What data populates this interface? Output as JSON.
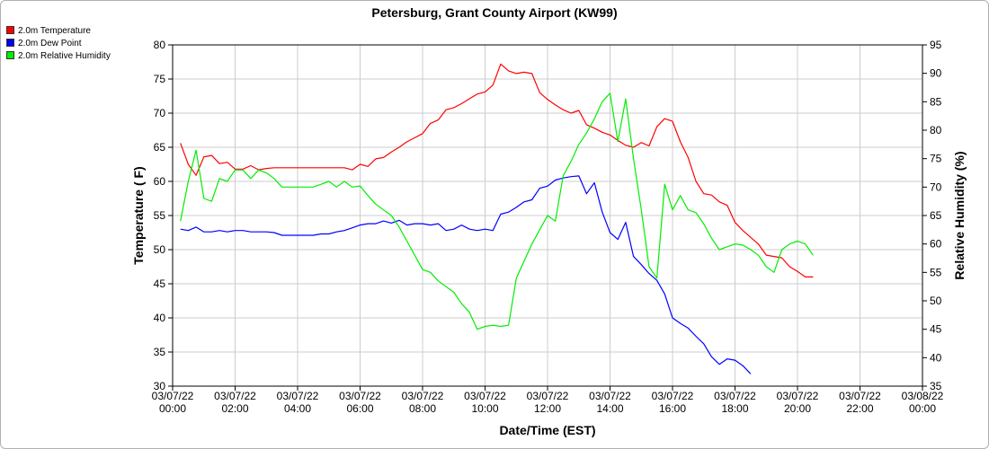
{
  "chart_data": {
    "type": "line",
    "title": "Petersburg, Grant County Airport (KW99)",
    "xlabel": "Date/Time (EST)",
    "ylabel_left": "Temperature ( F)",
    "ylabel_right": "Relative Humidity (%)",
    "grid": true,
    "legend_placement": "top-left",
    "x_ticks": [
      {
        "date": "03/07/22",
        "time": "00:00",
        "hours": 0
      },
      {
        "date": "03/07/22",
        "time": "02:00",
        "hours": 2
      },
      {
        "date": "03/07/22",
        "time": "04:00",
        "hours": 4
      },
      {
        "date": "03/07/22",
        "time": "06:00",
        "hours": 6
      },
      {
        "date": "03/07/22",
        "time": "08:00",
        "hours": 8
      },
      {
        "date": "03/07/22",
        "time": "10:00",
        "hours": 10
      },
      {
        "date": "03/07/22",
        "time": "12:00",
        "hours": 12
      },
      {
        "date": "03/07/22",
        "time": "14:00",
        "hours": 14
      },
      {
        "date": "03/07/22",
        "time": "16:00",
        "hours": 16
      },
      {
        "date": "03/07/22",
        "time": "18:00",
        "hours": 18
      },
      {
        "date": "03/07/22",
        "time": "20:00",
        "hours": 20
      },
      {
        "date": "03/07/22",
        "time": "22:00",
        "hours": 22
      },
      {
        "date": "03/08/22",
        "time": "00:00",
        "hours": 24
      }
    ],
    "xlim_hours": [
      0,
      24
    ],
    "ylim_left": [
      30,
      80
    ],
    "yticks_left": [
      30,
      35,
      40,
      45,
      50,
      55,
      60,
      65,
      70,
      75,
      80
    ],
    "ylim_right": [
      35,
      95
    ],
    "yticks_right": [
      35,
      40,
      45,
      50,
      55,
      60,
      65,
      70,
      75,
      80,
      85,
      90,
      95
    ],
    "series": [
      {
        "name": "2.0m Temperature",
        "color": "#ff0000",
        "axis": "left",
        "points": [
          [
            0.25,
            65.6
          ],
          [
            0.5,
            62.5
          ],
          [
            0.75,
            60.9
          ],
          [
            1.0,
            63.6
          ],
          [
            1.25,
            63.8
          ],
          [
            1.5,
            62.6
          ],
          [
            1.75,
            62.8
          ],
          [
            2.0,
            61.8
          ],
          [
            2.25,
            61.8
          ],
          [
            2.5,
            62.3
          ],
          [
            2.75,
            61.7
          ],
          [
            3.0,
            61.9
          ],
          [
            3.25,
            62.0
          ],
          [
            3.5,
            62.0
          ],
          [
            4.0,
            62.0
          ],
          [
            4.5,
            62.0
          ],
          [
            5.0,
            62.0
          ],
          [
            5.5,
            62.0
          ],
          [
            5.75,
            61.7
          ],
          [
            6.0,
            62.5
          ],
          [
            6.25,
            62.2
          ],
          [
            6.5,
            63.3
          ],
          [
            6.75,
            63.5
          ],
          [
            7.0,
            64.3
          ],
          [
            7.25,
            65.0
          ],
          [
            7.5,
            65.8
          ],
          [
            7.75,
            66.4
          ],
          [
            8.0,
            67.0
          ],
          [
            8.25,
            68.5
          ],
          [
            8.5,
            69.0
          ],
          [
            8.75,
            70.5
          ],
          [
            9.0,
            70.8
          ],
          [
            9.25,
            71.4
          ],
          [
            9.5,
            72.1
          ],
          [
            9.75,
            72.8
          ],
          [
            10.0,
            73.1
          ],
          [
            10.25,
            74.1
          ],
          [
            10.5,
            77.2
          ],
          [
            10.75,
            76.2
          ],
          [
            11.0,
            75.8
          ],
          [
            11.25,
            76.0
          ],
          [
            11.5,
            75.8
          ],
          [
            11.75,
            73.0
          ],
          [
            12.0,
            72.0
          ],
          [
            12.25,
            71.2
          ],
          [
            12.5,
            70.5
          ],
          [
            12.75,
            70.0
          ],
          [
            13.0,
            70.4
          ],
          [
            13.25,
            68.3
          ],
          [
            13.5,
            67.8
          ],
          [
            13.75,
            67.2
          ],
          [
            14.0,
            66.8
          ],
          [
            14.25,
            66.0
          ],
          [
            14.5,
            65.3
          ],
          [
            14.75,
            65.0
          ],
          [
            15.0,
            65.7
          ],
          [
            15.25,
            65.2
          ],
          [
            15.5,
            68.0
          ],
          [
            15.75,
            69.2
          ],
          [
            16.0,
            68.8
          ],
          [
            16.25,
            65.8
          ],
          [
            16.5,
            63.5
          ],
          [
            16.75,
            60.0
          ],
          [
            17.0,
            58.2
          ],
          [
            17.25,
            58.0
          ],
          [
            17.5,
            57.0
          ],
          [
            17.75,
            56.5
          ],
          [
            18.0,
            54.0
          ],
          [
            18.25,
            52.8
          ],
          [
            18.5,
            51.8
          ],
          [
            18.75,
            50.8
          ],
          [
            19.0,
            49.2
          ],
          [
            19.25,
            49.0
          ],
          [
            19.5,
            48.8
          ],
          [
            19.75,
            47.5
          ],
          [
            20.0,
            46.8
          ],
          [
            20.25,
            46.0
          ],
          [
            20.5,
            46.0
          ]
        ]
      },
      {
        "name": "2.0m Dew Point",
        "color": "#0000ff",
        "axis": "left",
        "points": [
          [
            0.25,
            53.0
          ],
          [
            0.5,
            52.8
          ],
          [
            0.75,
            53.3
          ],
          [
            1.0,
            52.6
          ],
          [
            1.25,
            52.6
          ],
          [
            1.5,
            52.8
          ],
          [
            1.75,
            52.6
          ],
          [
            2.0,
            52.8
          ],
          [
            2.25,
            52.8
          ],
          [
            2.5,
            52.6
          ],
          [
            3.0,
            52.6
          ],
          [
            3.25,
            52.5
          ],
          [
            3.5,
            52.1
          ],
          [
            4.0,
            52.1
          ],
          [
            4.5,
            52.1
          ],
          [
            4.75,
            52.3
          ],
          [
            5.0,
            52.3
          ],
          [
            5.25,
            52.6
          ],
          [
            5.5,
            52.8
          ],
          [
            5.75,
            53.2
          ],
          [
            6.0,
            53.6
          ],
          [
            6.25,
            53.8
          ],
          [
            6.5,
            53.8
          ],
          [
            6.75,
            54.2
          ],
          [
            7.0,
            53.9
          ],
          [
            7.25,
            54.3
          ],
          [
            7.5,
            53.6
          ],
          [
            7.75,
            53.8
          ],
          [
            8.0,
            53.8
          ],
          [
            8.25,
            53.6
          ],
          [
            8.5,
            53.8
          ],
          [
            8.75,
            52.8
          ],
          [
            9.0,
            53.0
          ],
          [
            9.25,
            53.6
          ],
          [
            9.5,
            53.0
          ],
          [
            9.75,
            52.8
          ],
          [
            10.0,
            53.0
          ],
          [
            10.25,
            52.8
          ],
          [
            10.5,
            55.2
          ],
          [
            10.75,
            55.5
          ],
          [
            11.0,
            56.2
          ],
          [
            11.25,
            57.0
          ],
          [
            11.5,
            57.3
          ],
          [
            11.75,
            59.0
          ],
          [
            12.0,
            59.3
          ],
          [
            12.25,
            60.2
          ],
          [
            12.5,
            60.5
          ],
          [
            12.75,
            60.7
          ],
          [
            13.0,
            60.8
          ],
          [
            13.25,
            58.2
          ],
          [
            13.5,
            59.8
          ],
          [
            13.75,
            55.5
          ],
          [
            14.0,
            52.5
          ],
          [
            14.25,
            51.5
          ],
          [
            14.5,
            54.0
          ],
          [
            14.75,
            49.0
          ],
          [
            15.0,
            47.8
          ],
          [
            15.25,
            46.5
          ],
          [
            15.5,
            45.5
          ],
          [
            15.75,
            43.5
          ],
          [
            16.0,
            40.0
          ],
          [
            16.25,
            39.2
          ],
          [
            16.5,
            38.5
          ],
          [
            16.75,
            37.3
          ],
          [
            17.0,
            36.2
          ],
          [
            17.25,
            34.3
          ],
          [
            17.5,
            33.2
          ],
          [
            17.75,
            34.0
          ],
          [
            18.0,
            33.8
          ],
          [
            18.25,
            33.0
          ],
          [
            18.5,
            31.8
          ]
        ]
      },
      {
        "name": "2.0m Relative Humidity",
        "color": "#00ee00",
        "axis": "right",
        "points": [
          [
            0.25,
            64.0
          ],
          [
            0.5,
            71.0
          ],
          [
            0.75,
            76.5
          ],
          [
            1.0,
            68.0
          ],
          [
            1.25,
            67.5
          ],
          [
            1.5,
            71.5
          ],
          [
            1.75,
            71.0
          ],
          [
            2.0,
            73.0
          ],
          [
            2.25,
            73.0
          ],
          [
            2.5,
            71.5
          ],
          [
            2.75,
            73.0
          ],
          [
            3.0,
            72.5
          ],
          [
            3.25,
            71.5
          ],
          [
            3.5,
            70.0
          ],
          [
            4.0,
            70.0
          ],
          [
            4.5,
            70.0
          ],
          [
            4.75,
            70.5
          ],
          [
            5.0,
            71.0
          ],
          [
            5.25,
            70.0
          ],
          [
            5.5,
            71.0
          ],
          [
            5.75,
            70.0
          ],
          [
            6.0,
            70.2
          ],
          [
            6.25,
            68.5
          ],
          [
            6.5,
            67.0
          ],
          [
            6.75,
            66.0
          ],
          [
            7.0,
            65.0
          ],
          [
            7.25,
            63.0
          ],
          [
            7.5,
            60.5
          ],
          [
            7.75,
            58.0
          ],
          [
            8.0,
            55.5
          ],
          [
            8.25,
            55.0
          ],
          [
            8.5,
            53.5
          ],
          [
            8.75,
            52.5
          ],
          [
            9.0,
            51.5
          ],
          [
            9.25,
            49.5
          ],
          [
            9.5,
            48.0
          ],
          [
            9.75,
            45.0
          ],
          [
            10.0,
            45.5
          ],
          [
            10.25,
            45.7
          ],
          [
            10.5,
            45.5
          ],
          [
            10.75,
            45.7
          ],
          [
            11.0,
            54.0
          ],
          [
            11.25,
            57.0
          ],
          [
            11.5,
            60.0
          ],
          [
            11.75,
            62.5
          ],
          [
            12.0,
            65.0
          ],
          [
            12.25,
            64.0
          ],
          [
            12.5,
            72.0
          ],
          [
            12.75,
            74.5
          ],
          [
            13.0,
            77.5
          ],
          [
            13.25,
            79.5
          ],
          [
            13.5,
            82.0
          ],
          [
            13.75,
            85.0
          ],
          [
            14.0,
            86.5
          ],
          [
            14.25,
            78.0
          ],
          [
            14.5,
            85.5
          ],
          [
            14.75,
            75.0
          ],
          [
            15.0,
            66.0
          ],
          [
            15.25,
            56.0
          ],
          [
            15.5,
            54.0
          ],
          [
            15.75,
            70.5
          ],
          [
            16.0,
            66.0
          ],
          [
            16.25,
            68.5
          ],
          [
            16.5,
            66.0
          ],
          [
            16.75,
            65.5
          ],
          [
            17.0,
            63.5
          ],
          [
            17.25,
            61.0
          ],
          [
            17.5,
            59.0
          ],
          [
            17.75,
            59.5
          ],
          [
            18.0,
            60.0
          ],
          [
            18.25,
            59.8
          ],
          [
            18.5,
            59.0
          ],
          [
            18.75,
            58.0
          ],
          [
            19.0,
            56.0
          ],
          [
            19.25,
            55.0
          ],
          [
            19.5,
            59.0
          ],
          [
            19.75,
            60.0
          ],
          [
            20.0,
            60.5
          ],
          [
            20.25,
            60.0
          ],
          [
            20.5,
            58.0
          ]
        ]
      }
    ]
  }
}
